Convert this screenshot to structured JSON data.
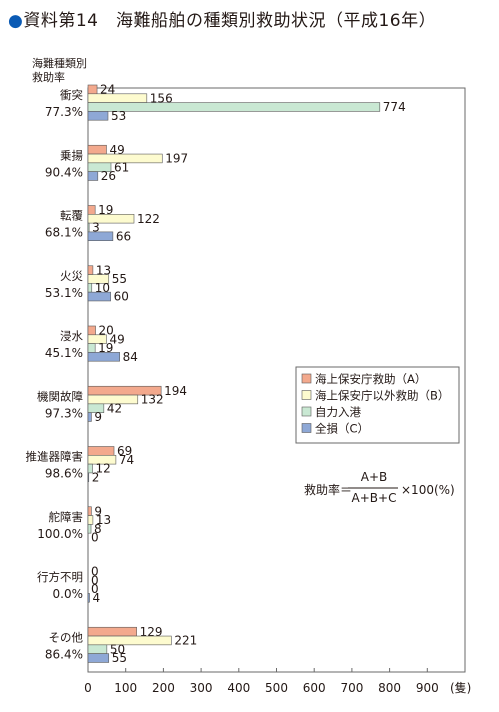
{
  "title": "資料第14　海難船舶の種類別救助状況（平成16年）",
  "bullet": "●",
  "y_header": [
    "海難種類別",
    "救助率"
  ],
  "formula": {
    "lhs": "救助率＝",
    "numerator": "A+B",
    "denominator": "A+B+C",
    "rhs": "×100(%)"
  },
  "colors": {
    "A": "#f3a98d",
    "B": "#fdfbcf",
    "C": "#c9e8d3",
    "D": "#8ea8d6",
    "border": "#6a6a6a",
    "title_bullet": "#0a5ab4"
  },
  "chart_data": {
    "type": "bar",
    "orientation": "horizontal",
    "categories": [
      "衝突",
      "乗揚",
      "転覆",
      "火災",
      "浸水",
      "機関故障",
      "推進器障害",
      "舵障害",
      "行方不明",
      "その他"
    ],
    "rates": [
      "77.3%",
      "90.4%",
      "68.1%",
      "53.1%",
      "45.1%",
      "97.3%",
      "98.6%",
      "100.0%",
      "0.0%",
      "86.4%"
    ],
    "series": [
      {
        "name": "海上保安庁救助（A）",
        "values": [
          24,
          49,
          19,
          13,
          20,
          194,
          69,
          9,
          0,
          129
        ]
      },
      {
        "name": "海上保安庁以外救助（B）",
        "values": [
          156,
          197,
          122,
          55,
          49,
          132,
          74,
          13,
          0,
          221
        ]
      },
      {
        "name": "自力入港",
        "values": [
          774,
          61,
          3,
          10,
          19,
          42,
          12,
          8,
          0,
          50
        ]
      },
      {
        "name": "全損（C）",
        "values": [
          53,
          26,
          66,
          60,
          84,
          9,
          2,
          0,
          4,
          55
        ]
      }
    ],
    "x_ticks": [
      0,
      100,
      200,
      300,
      400,
      500,
      600,
      700,
      800,
      900
    ],
    "x_unit": "(隻)",
    "xlim": [
      0,
      1000
    ],
    "grid": false,
    "legend_position": "right-middle"
  }
}
